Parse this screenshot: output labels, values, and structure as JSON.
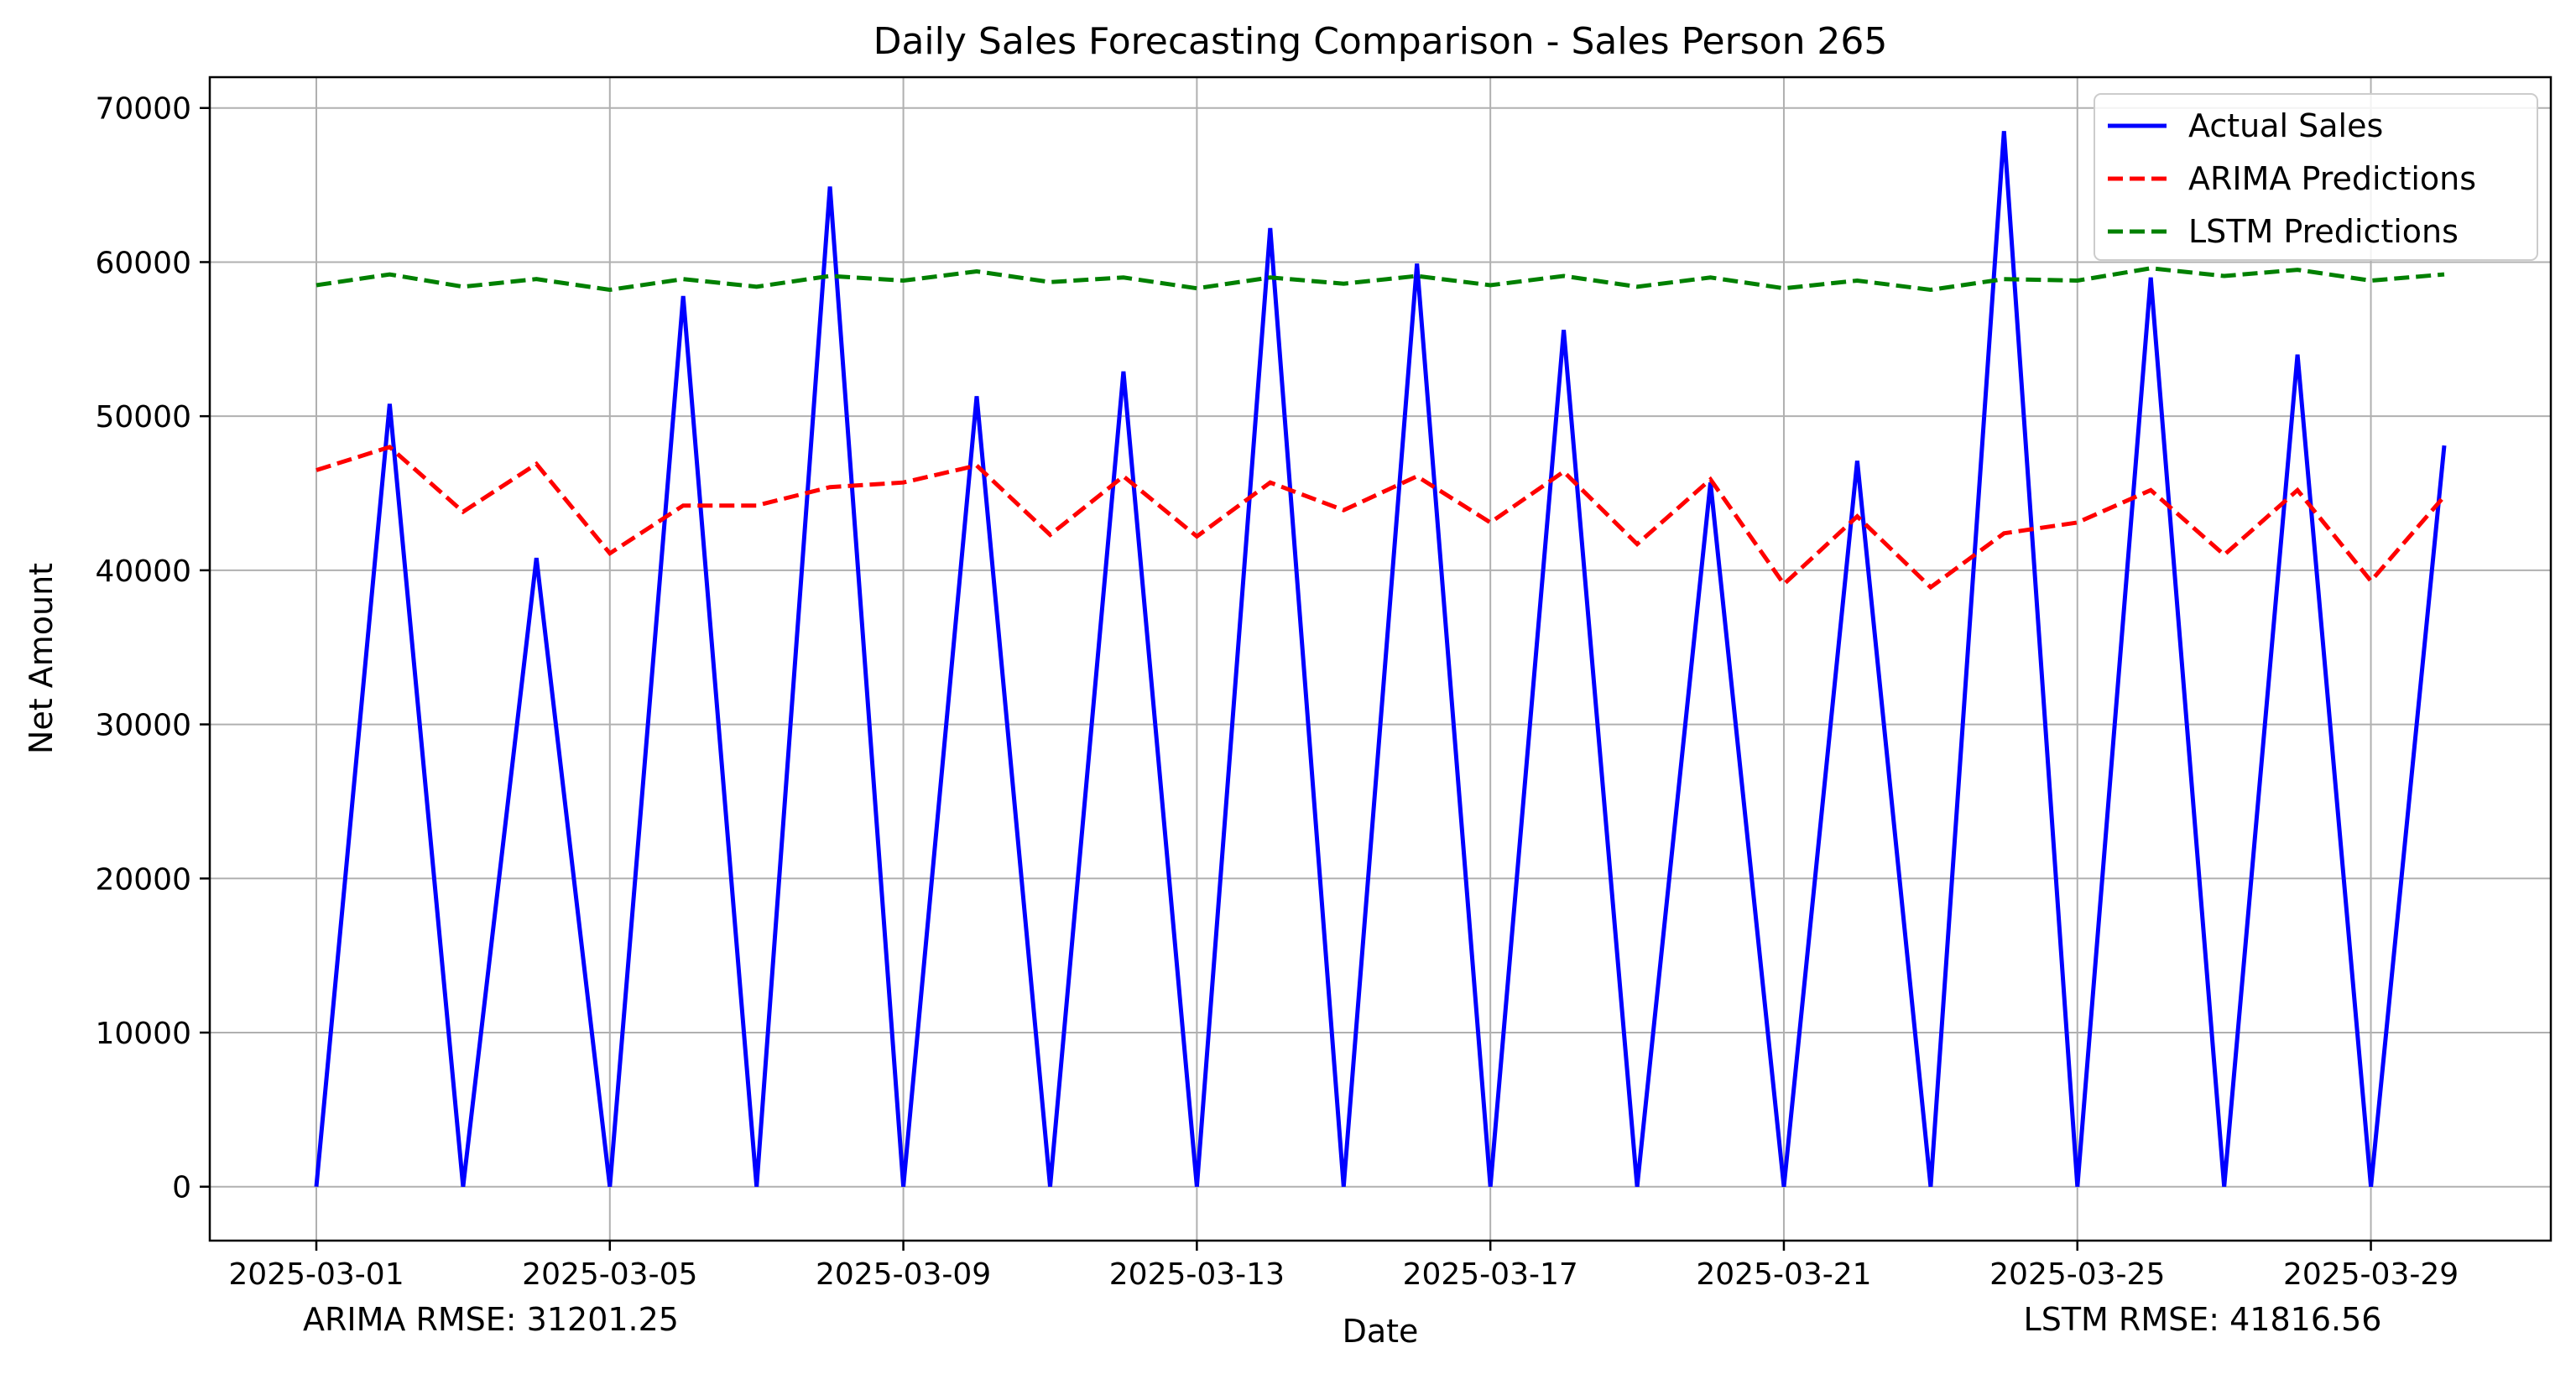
{
  "chart_data": {
    "type": "line",
    "title": "Daily Sales Forecasting Comparison - Sales Person 265",
    "xlabel": "Date",
    "ylabel": "Net Amount",
    "x": [
      "2025-03-01",
      "2025-03-02",
      "2025-03-03",
      "2025-03-04",
      "2025-03-05",
      "2025-03-06",
      "2025-03-07",
      "2025-03-08",
      "2025-03-09",
      "2025-03-10",
      "2025-03-11",
      "2025-03-12",
      "2025-03-13",
      "2025-03-14",
      "2025-03-15",
      "2025-03-16",
      "2025-03-17",
      "2025-03-18",
      "2025-03-19",
      "2025-03-20",
      "2025-03-21",
      "2025-03-22",
      "2025-03-23",
      "2025-03-24",
      "2025-03-25",
      "2025-03-26",
      "2025-03-27",
      "2025-03-28",
      "2025-03-29",
      "2025-03-30"
    ],
    "xticks": [
      "2025-03-01",
      "2025-03-05",
      "2025-03-09",
      "2025-03-13",
      "2025-03-17",
      "2025-03-21",
      "2025-03-25",
      "2025-03-29"
    ],
    "ylim": [
      -3500,
      72000
    ],
    "yticks": [
      0,
      10000,
      20000,
      30000,
      40000,
      50000,
      60000,
      70000
    ],
    "grid": true,
    "legend_position": "top-right",
    "series": [
      {
        "name": "Actual Sales",
        "color": "#0000ff",
        "style": "solid",
        "values": [
          0,
          50800,
          0,
          40800,
          0,
          57800,
          0,
          64900,
          0,
          51300,
          0,
          52900,
          0,
          62200,
          0,
          59900,
          0,
          55600,
          0,
          45700,
          0,
          47100,
          0,
          68500,
          0,
          59000,
          0,
          54000,
          0,
          48100
        ]
      },
      {
        "name": "ARIMA Predictions",
        "color": "#ff0000",
        "style": "dashed",
        "values": [
          46500,
          48000,
          43800,
          46900,
          41100,
          44200,
          44200,
          45400,
          45700,
          46800,
          42300,
          46100,
          42200,
          45700,
          43900,
          46100,
          43100,
          46400,
          41700,
          45900,
          39100,
          43500,
          38900,
          42400,
          43100,
          45200,
          41000,
          45200,
          39300,
          44800
        ]
      },
      {
        "name": "LSTM Predictions",
        "color": "#008000",
        "style": "dashed",
        "values": [
          58500,
          59200,
          58400,
          58900,
          58200,
          58900,
          58400,
          59100,
          58800,
          59400,
          58700,
          59000,
          58300,
          59000,
          58600,
          59100,
          58500,
          59100,
          58400,
          59000,
          58300,
          58800,
          58200,
          58900,
          58800,
          59600,
          59100,
          59500,
          58800,
          59200
        ]
      }
    ],
    "annotations": {
      "arima_rmse": "ARIMA RMSE: 31201.25",
      "lstm_rmse": "LSTM RMSE: 41816.56"
    }
  }
}
